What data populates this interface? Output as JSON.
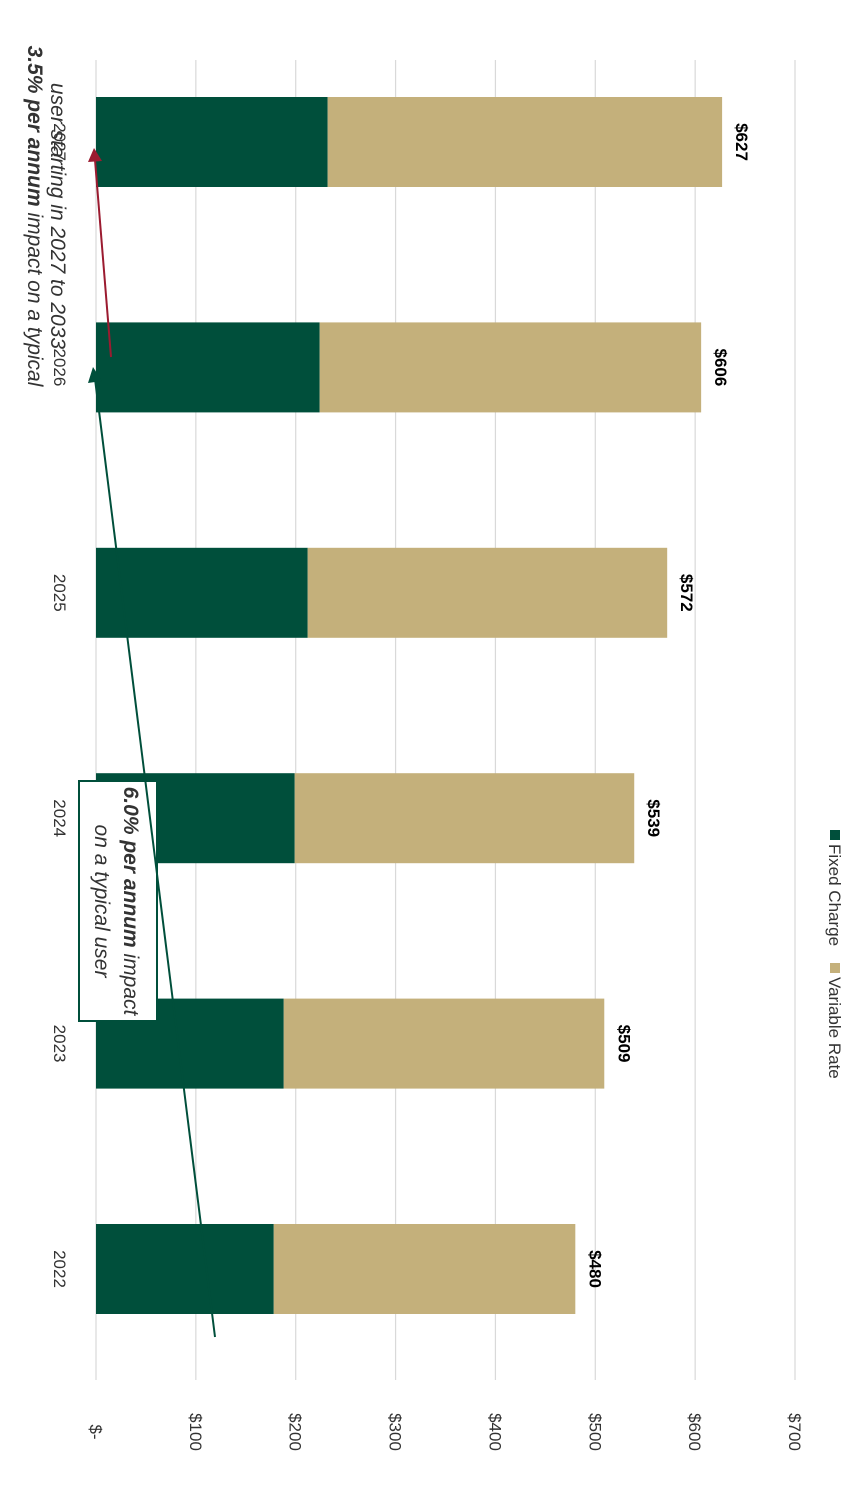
{
  "chart_data": {
    "type": "bar",
    "stacked": true,
    "orientation": "vertical (image rotated 90° clockwise)",
    "categories": [
      "2022",
      "2023",
      "2024",
      "2025",
      "2026",
      "2027"
    ],
    "series": [
      {
        "name": "Fixed Charge",
        "color": "#004f3b",
        "values": [
          178,
          188,
          199,
          212,
          224,
          232
        ]
      },
      {
        "name": "Variable Rate",
        "color": "#c4b07b",
        "values": [
          302,
          321,
          340,
          360,
          382,
          395
        ]
      }
    ],
    "totals": [
      480,
      509,
      539,
      572,
      606,
      627
    ],
    "data_labels": [
      "$480",
      "$509",
      "$539",
      "$572",
      "$606",
      "$627"
    ],
    "y_ticks": [
      "$-",
      "$100",
      "$200",
      "$300",
      "$400",
      "$500",
      "$600",
      "$700"
    ],
    "ylim": [
      0,
      700
    ],
    "grid": true,
    "legend_position": "bottom",
    "annotations": [
      {
        "bold": "6.0% per annum",
        "line1": " impact",
        "line2": "on a typical user",
        "color": "#004f3b",
        "boxed": true
      },
      {
        "bold": "3.5% per annum",
        "line1": " impact on a typical",
        "line2": "user starting in 2027 to 2033",
        "color": "#9b1b30",
        "boxed": false
      }
    ]
  }
}
